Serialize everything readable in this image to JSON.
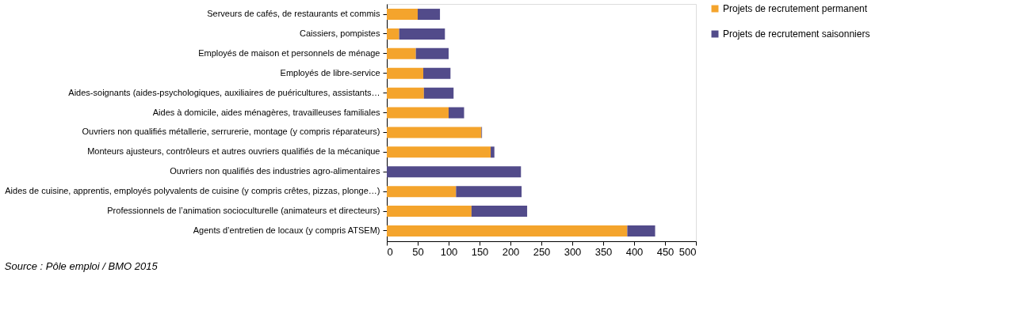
{
  "chart_data": {
    "type": "bar",
    "orientation": "horizontal",
    "stacked": true,
    "categories": [
      "Serveurs de cafés, de restaurants et commis",
      "Caissiers, pompistes",
      "Employés de maison et personnels de ménage",
      "Employés de libre-service",
      "Aides-soignants (aides-psychologiques, auxiliaires de puéricultures, assistants…",
      "Aides à domicile, aides ménagères, travailleuses familiales",
      "Ouvriers non qualifiés métallerie, serrurerie, montage (y compris réparateurs)",
      "Monteurs ajusteurs, contrôleurs et autres ouvriers qualifiés de la mécanique",
      "Ouvriers non qualifiés des industries agro-alimentaires",
      "Aides de cuisine, apprentis, employés polyvalents de cuisine (y compris crêtes, pizzas, plonge…)",
      "Professionnels de l’animation socioculturelle (animateurs et directeurs)",
      "Agents d’entretien de locaux (y compris ATSEM)"
    ],
    "series": [
      {
        "name": "Projets de recrutement permanent",
        "color": "#f4a42c",
        "values": [
          50,
          20,
          47,
          59,
          60,
          100,
          153,
          168,
          0,
          112,
          137,
          389
        ]
      },
      {
        "name": "Projets de recrutement saisonniers",
        "color": "#524b8a",
        "values": [
          36,
          74,
          53,
          44,
          48,
          25,
          1,
          6,
          217,
          106,
          90,
          45
        ]
      }
    ],
    "xlim": [
      0,
      500
    ],
    "xticks": [
      0,
      50,
      100,
      150,
      200,
      250,
      300,
      350,
      400,
      450,
      500
    ],
    "grid": false,
    "legend": "top right",
    "annotations": [
      "Source : Pôle emploi / BMO 2015"
    ]
  }
}
